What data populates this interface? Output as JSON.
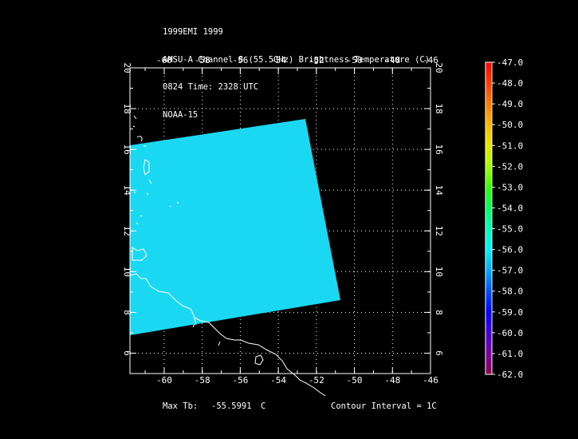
{
  "header": {
    "line1": "1999EMI 1999",
    "line2": "AMSU-A Channel 8 (55.5GHz) Brightness Temperature (C)",
    "line3": "0824 Time: 2328 UTC",
    "line4": "NOAA-15"
  },
  "map": {
    "lon_labels": [
      "-60",
      "-58",
      "-56",
      "-54",
      "-52",
      "-50",
      "-48",
      "-46"
    ],
    "lat_labels": [
      "20",
      "18",
      "16",
      "14",
      "12",
      "10",
      "8",
      "6"
    ],
    "lon_range": [
      -61.8,
      -46
    ],
    "lat_range": [
      5,
      20
    ],
    "swath_color": "#1ad8f2",
    "grid_style": "dotted"
  },
  "colorbar": {
    "labels": [
      "-47.0",
      "-48.0",
      "-49.0",
      "-50.0",
      "-51.0",
      "-52.0",
      "-53.0",
      "-54.0",
      "-55.0",
      "-56.0",
      "-57.0",
      "-58.0",
      "-59.0",
      "-60.0",
      "-61.0",
      "-62.0"
    ],
    "colors": [
      "#ff0000",
      "#ff3b00",
      "#ff7a00",
      "#ffb400",
      "#e6e600",
      "#a0ff00",
      "#30ff00",
      "#00ff5a",
      "#00ffb4",
      "#00f0ff",
      "#00a8ff",
      "#0050ff",
      "#0000ff",
      "#4400d8",
      "#7a00a0",
      "#8a0050"
    ]
  },
  "footer": {
    "max_label": "Max Tb:",
    "max_value": "-55.5991",
    "max_unit": "C",
    "contour": "Contour Interval = 1C"
  }
}
